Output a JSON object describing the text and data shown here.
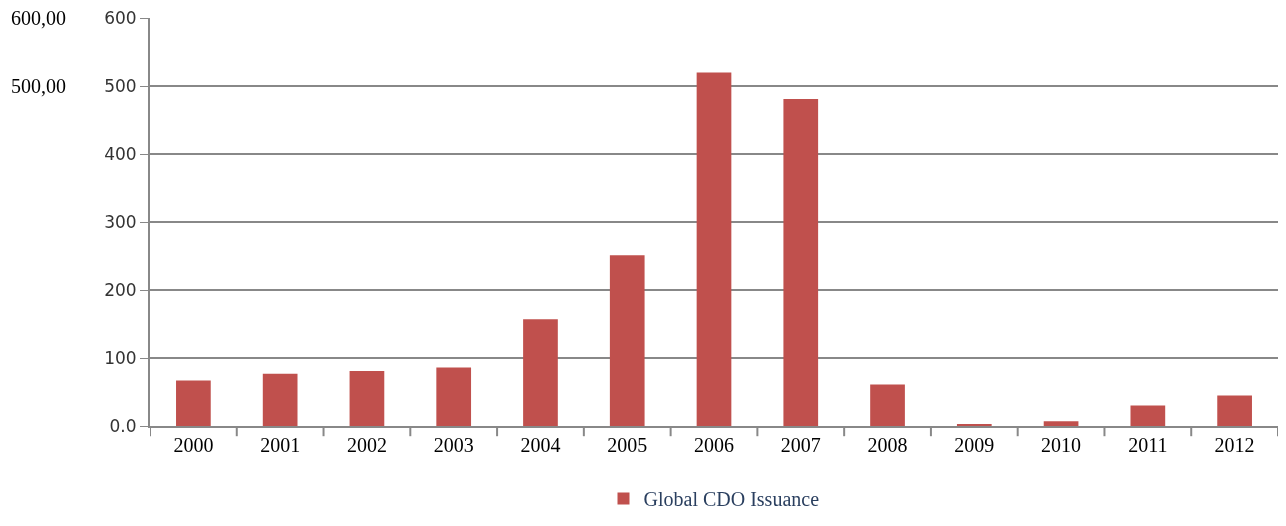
{
  "chart_data": {
    "type": "bar",
    "categories": [
      "2000",
      "2001",
      "2002",
      "2003",
      "2004",
      "2005",
      "2006",
      "2007",
      "2008",
      "2009",
      "2010",
      "2011",
      "2012"
    ],
    "series": [
      {
        "name": "Global CDO Issuance",
        "color": "#c0504d",
        "values": [
          67,
          77,
          81,
          86,
          157,
          251,
          520,
          481,
          61,
          3,
          7,
          30,
          45
        ]
      }
    ],
    "ylim": [
      0,
      600
    ],
    "yticks": [
      {
        "value": 0,
        "label": "0.0"
      },
      100,
      200,
      300,
      400,
      500,
      600
    ],
    "annotations": [
      "600,00",
      "500,00"
    ],
    "grid": "y",
    "legend": "bottom"
  }
}
